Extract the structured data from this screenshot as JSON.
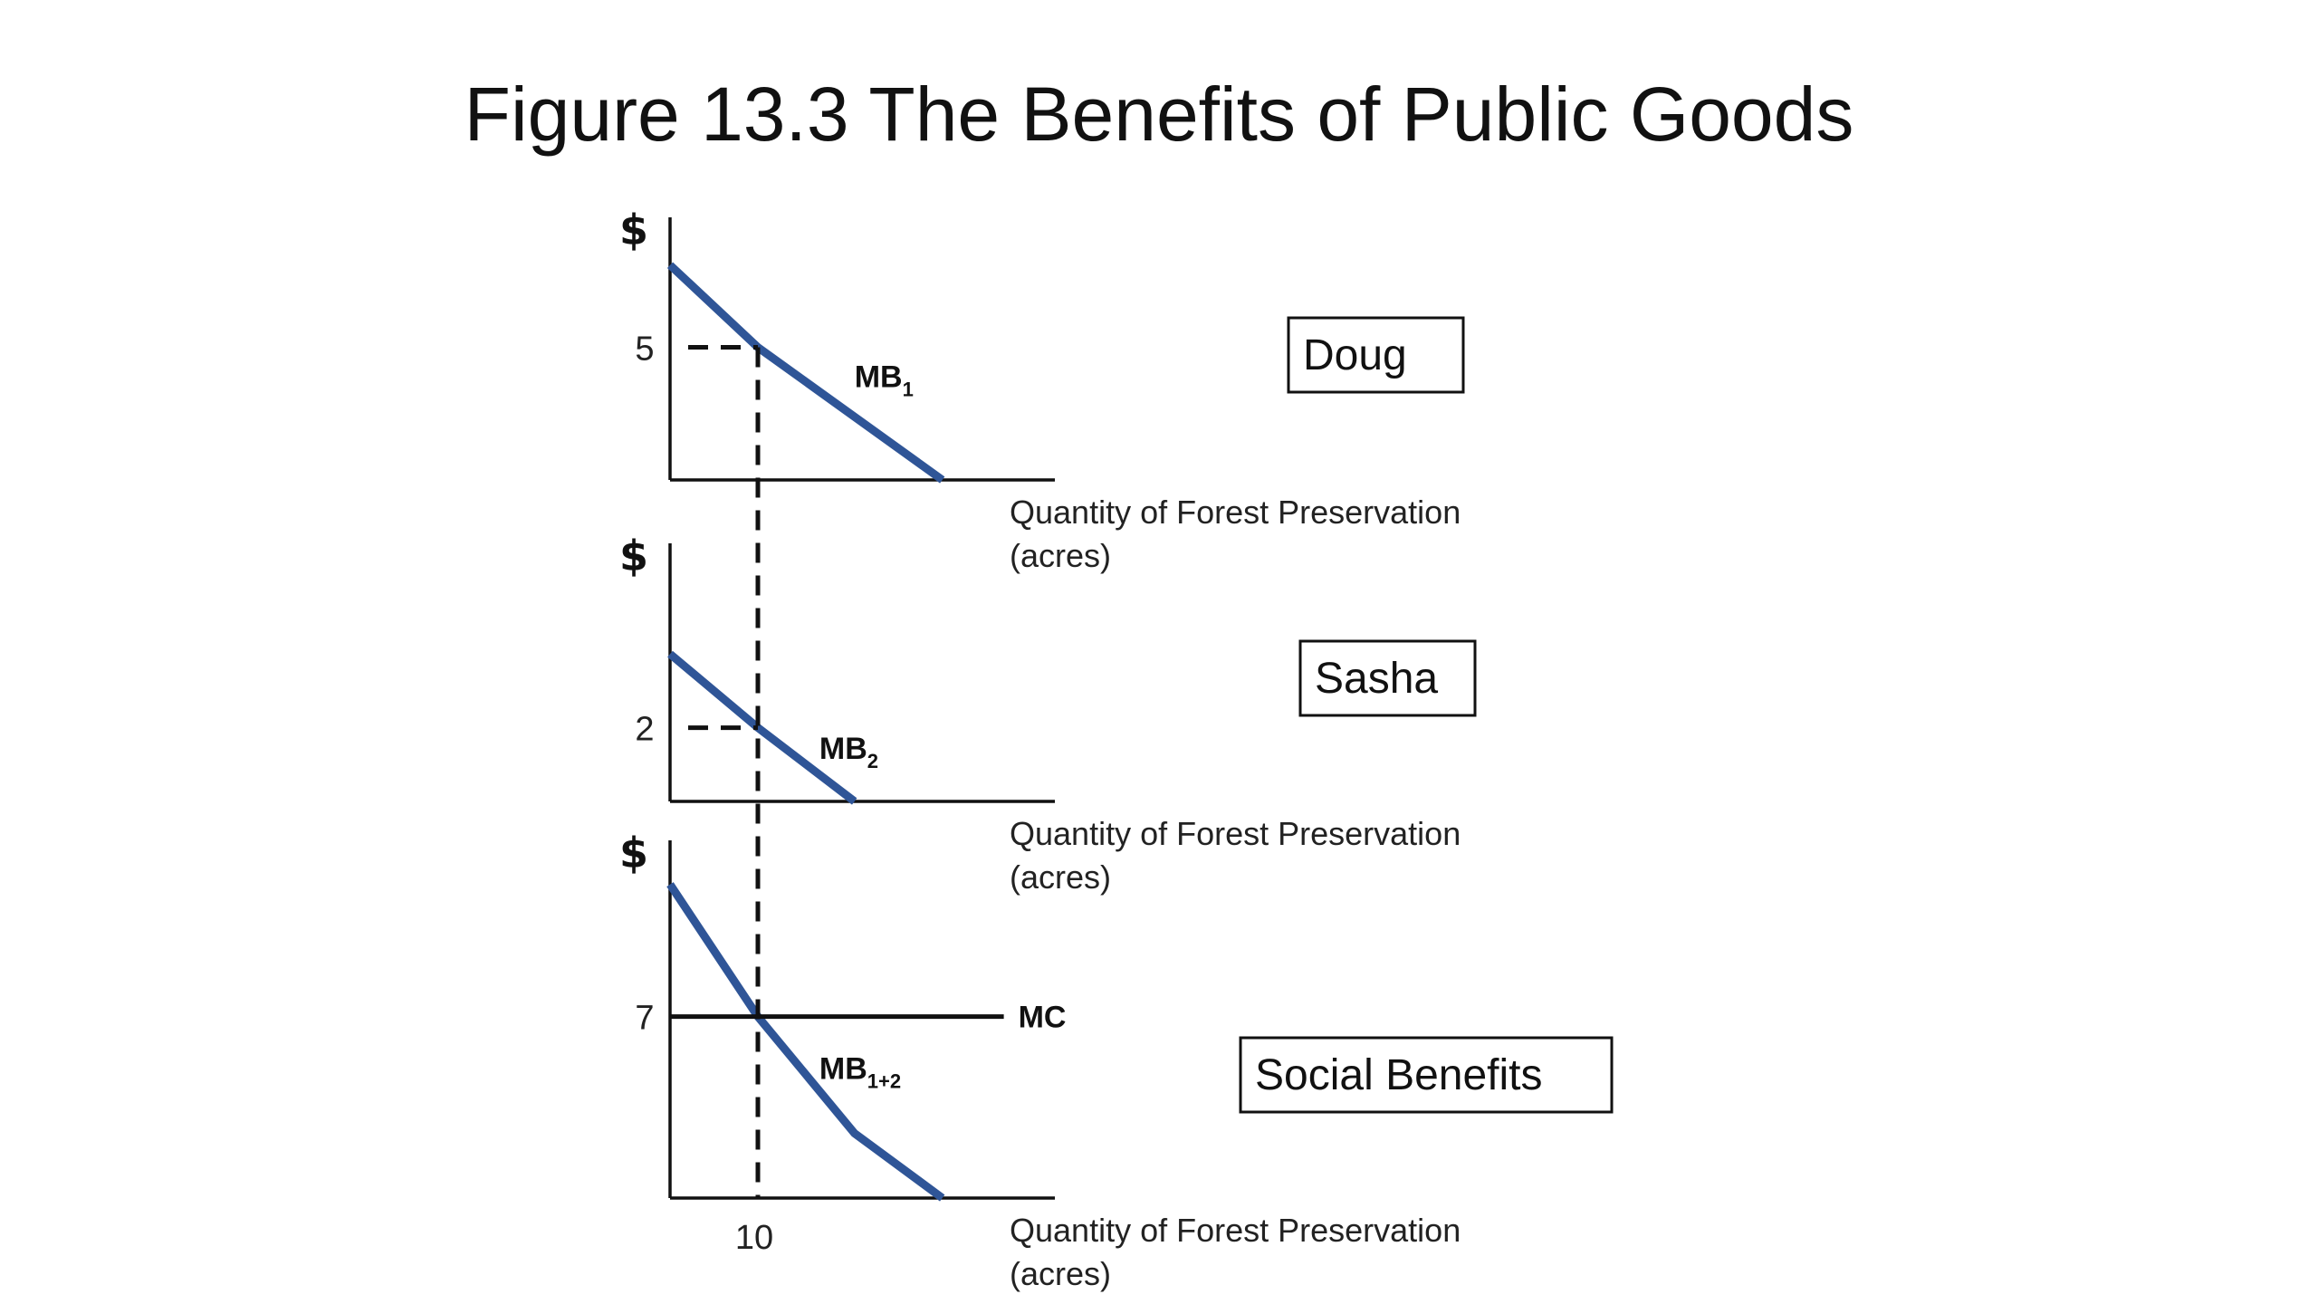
{
  "title": "Figure 13.3 The Benefits of Public Goods",
  "colors": {
    "curve": "#2f5597",
    "axis": "#111111"
  },
  "chart_data": [
    {
      "type": "line",
      "panel_label": "Doug",
      "ylabel": "$",
      "xlabel_line1": "Quantity of Forest Preservation",
      "xlabel_line2": "(acres)",
      "y_tick_labels": [
        "5"
      ],
      "series": [
        {
          "name": "MB",
          "subscript": "1",
          "x": [
            0,
            10,
            31
          ],
          "y": [
            8.1,
            5,
            0
          ]
        }
      ],
      "reference": {
        "x": 10,
        "y": 5
      },
      "xlim": [
        0,
        44
      ],
      "ylim": [
        0,
        9.9
      ]
    },
    {
      "type": "line",
      "panel_label": "Sasha",
      "ylabel": "$",
      "xlabel_line1": "Quantity of Forest Preservation",
      "xlabel_line2": "(acres)",
      "y_tick_labels": [
        "2"
      ],
      "series": [
        {
          "name": "MB",
          "subscript": "2",
          "x": [
            0,
            10,
            21
          ],
          "y": [
            4,
            2,
            0
          ]
        }
      ],
      "reference": {
        "x": 10,
        "y": 2
      },
      "xlim": [
        0,
        44
      ],
      "ylim": [
        0,
        7
      ]
    },
    {
      "type": "line",
      "panel_label": "Social Benefits",
      "ylabel": "$",
      "xlabel_line1": "Quantity of Forest Preservation",
      "xlabel_line2": "(acres)",
      "x_tick_labels": [
        "10"
      ],
      "y_tick_labels": [
        "7"
      ],
      "series": [
        {
          "name": "MB",
          "subscript": "1+2",
          "x": [
            0,
            10,
            21,
            31
          ],
          "y": [
            12.1,
            7,
            2.5,
            0
          ]
        },
        {
          "name": "MC",
          "subscript": "",
          "x": [
            0,
            38
          ],
          "y": [
            7,
            7
          ]
        }
      ],
      "reference": {
        "x": 10,
        "y": 7
      },
      "xlim": [
        0,
        44
      ],
      "ylim": [
        0,
        13.8
      ]
    }
  ]
}
